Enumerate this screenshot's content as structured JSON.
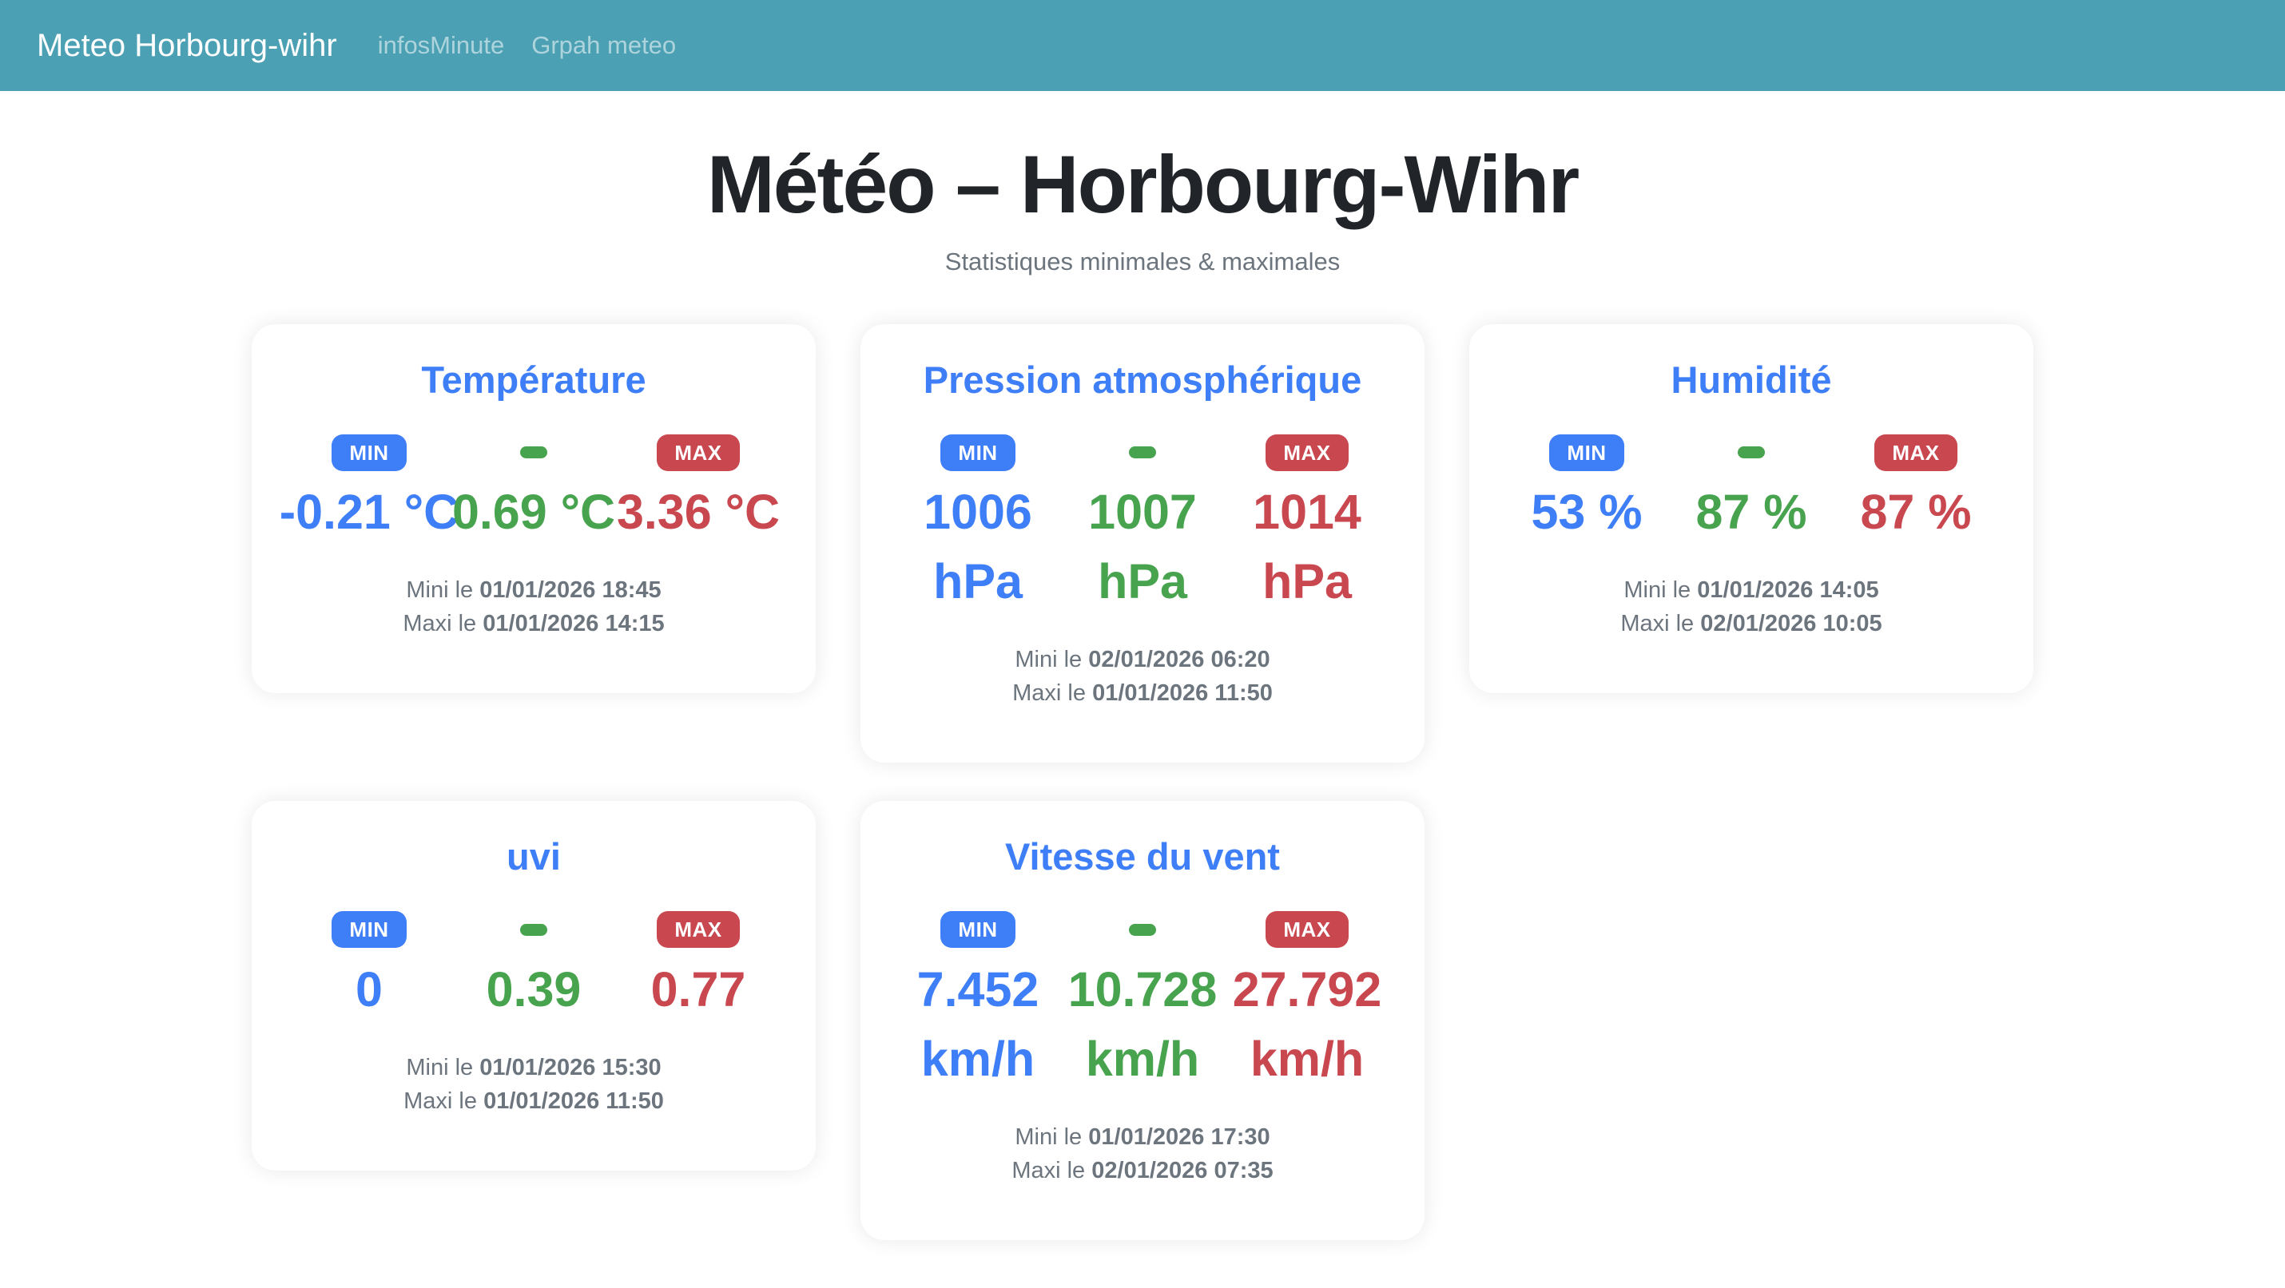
{
  "navbar": {
    "brand": "Meteo Horbourg-wihr",
    "links": [
      {
        "label": "infosMinute"
      },
      {
        "label": "Grpah meteo"
      }
    ]
  },
  "header": {
    "title": "Météo – Horbourg-Wihr",
    "subtitle": "Statistiques minimales & maximales"
  },
  "labels": {
    "min": "MIN",
    "max": "MAX"
  },
  "colors": {
    "navbar_bg": "#4ba0b3",
    "min_blue": "#3e7ef7",
    "avg_green": "#47a34e",
    "max_red": "#c9474f",
    "title_blue": "#3e7ef7",
    "footer_gray": "#6c757d",
    "heading_dark": "#212529"
  },
  "cards": [
    {
      "title": "Température",
      "min": {
        "value": "-0.21 °C",
        "unit": ""
      },
      "avg": {
        "value": "0.69 °C",
        "unit": ""
      },
      "max": {
        "value": "3.36 °C",
        "unit": ""
      },
      "mini_label": "Mini le",
      "mini_date": "01/01/2026 18:45",
      "maxi_label": "Maxi le",
      "maxi_date": "01/01/2026 14:15"
    },
    {
      "title": "Pression atmosphérique",
      "min": {
        "value": "1006",
        "unit": "hPa"
      },
      "avg": {
        "value": "1007",
        "unit": "hPa"
      },
      "max": {
        "value": "1014",
        "unit": "hPa"
      },
      "mini_label": "Mini le",
      "mini_date": "02/01/2026 06:20",
      "maxi_label": "Maxi le",
      "maxi_date": "01/01/2026 11:50"
    },
    {
      "title": "Humidité",
      "min": {
        "value": "53 %",
        "unit": ""
      },
      "avg": {
        "value": "87 %",
        "unit": ""
      },
      "max": {
        "value": "87 %",
        "unit": ""
      },
      "mini_label": "Mini le",
      "mini_date": "01/01/2026 14:05",
      "maxi_label": "Maxi le",
      "maxi_date": "02/01/2026 10:05"
    },
    {
      "title": "uvi",
      "min": {
        "value": "0",
        "unit": ""
      },
      "avg": {
        "value": "0.39",
        "unit": ""
      },
      "max": {
        "value": "0.77",
        "unit": ""
      },
      "mini_label": "Mini le",
      "mini_date": "01/01/2026 15:30",
      "maxi_label": "Maxi le",
      "maxi_date": "01/01/2026 11:50"
    },
    {
      "title": "Vitesse du vent",
      "min": {
        "value": "7.452",
        "unit": "km/h"
      },
      "avg": {
        "value": "10.728",
        "unit": "km/h"
      },
      "max": {
        "value": "27.792",
        "unit": "km/h"
      },
      "mini_label": "Mini le",
      "mini_date": "01/01/2026 17:30",
      "maxi_label": "Maxi le",
      "maxi_date": "02/01/2026 07:35"
    }
  ]
}
